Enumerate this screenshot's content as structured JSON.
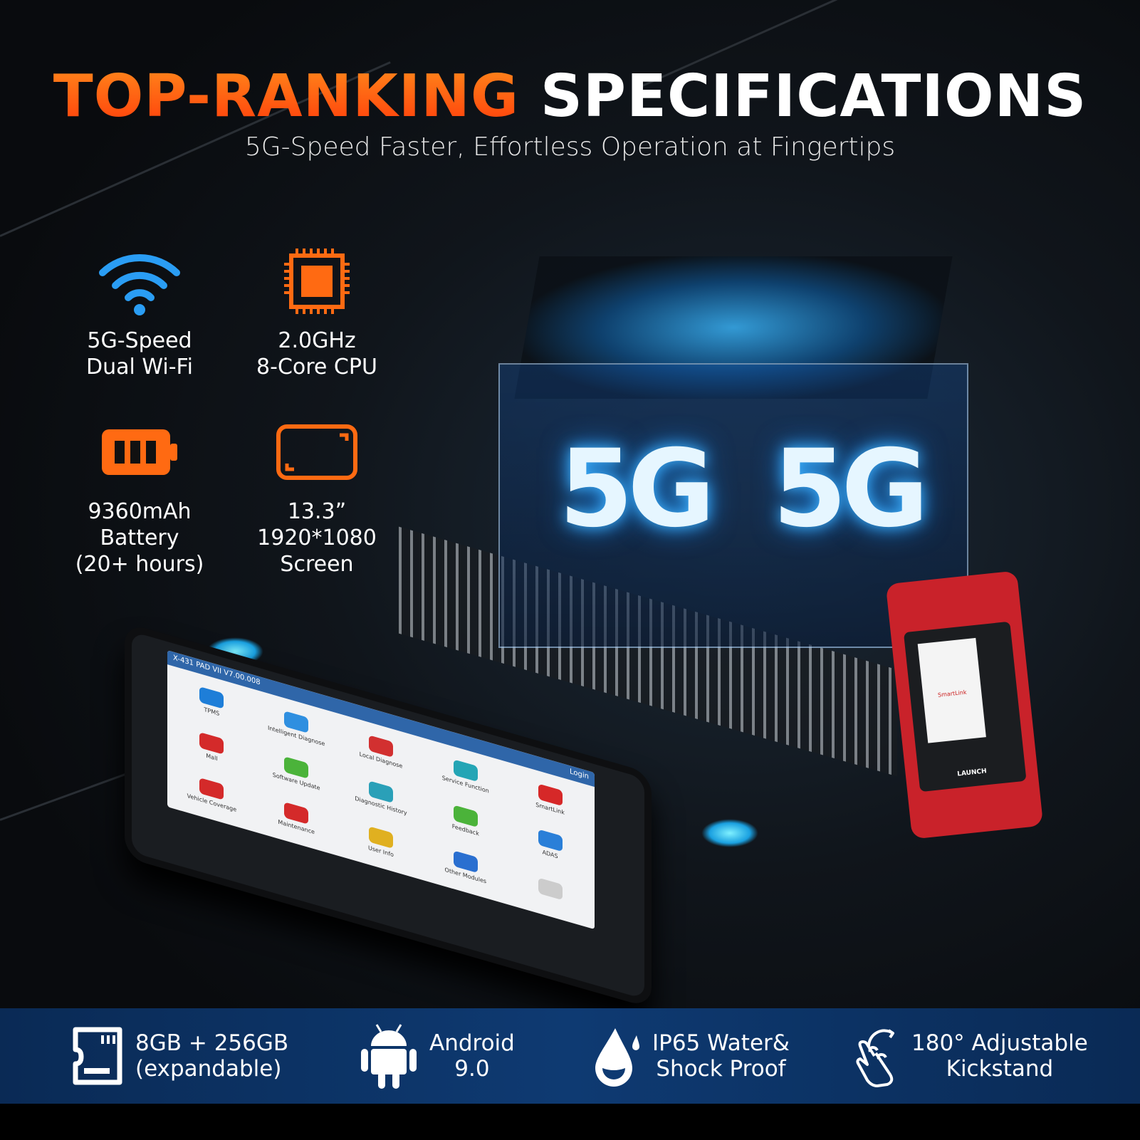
{
  "header": {
    "title_highlight": "TOP-RANKING",
    "title_rest": "SPECIFICATIONS",
    "subtitle": "5G-Speed Faster, Effortless Operation at Fingertips"
  },
  "colors": {
    "accent_orange": "#ff6a12",
    "wifi_blue": "#2a9df4",
    "band_blue": "#0e3a72"
  },
  "specs": [
    {
      "icon": "wifi-icon",
      "line1": "5G-Speed",
      "line2": "Dual Wi-Fi",
      "line3": ""
    },
    {
      "icon": "cpu-icon",
      "line1": "2.0GHz",
      "line2": "8-Core CPU",
      "line3": ""
    },
    {
      "icon": "battery-icon",
      "line1": "9360mAh",
      "line2": "Battery",
      "line3": "(20+ hours)"
    },
    {
      "icon": "screen-icon",
      "line1": "13.3”",
      "line2": "1920*1080",
      "line3": "Screen"
    }
  ],
  "cube": {
    "left_label": "5G",
    "right_label": "5G"
  },
  "tablet": {
    "status_title": "X-431 PAD VII V7.00.008",
    "login": "Login",
    "apps": [
      "TPMS",
      "Intelligent Diagnose",
      "Local Diagnose",
      "Service Function",
      "SmartLink",
      "Mall",
      "Software Update",
      "Diagnostic History",
      "Feedback",
      "ADAS",
      "Vehicle Coverage",
      "Maintenance",
      "User Info",
      "Other Modules",
      ""
    ]
  },
  "device": {
    "screen_label": "SmartLink",
    "brand": "LAUNCH"
  },
  "features": [
    {
      "icon": "sd-card-icon",
      "line1": "8GB + 256GB",
      "line2": "(expandable)"
    },
    {
      "icon": "android-icon",
      "line1": "Android",
      "line2": "9.0"
    },
    {
      "icon": "water-drop-icon",
      "line1": "IP65 Water&",
      "line2": "Shock Proof"
    },
    {
      "icon": "touch-hand-icon",
      "line1": "180° Adjustable",
      "line2": "Kickstand"
    }
  ]
}
